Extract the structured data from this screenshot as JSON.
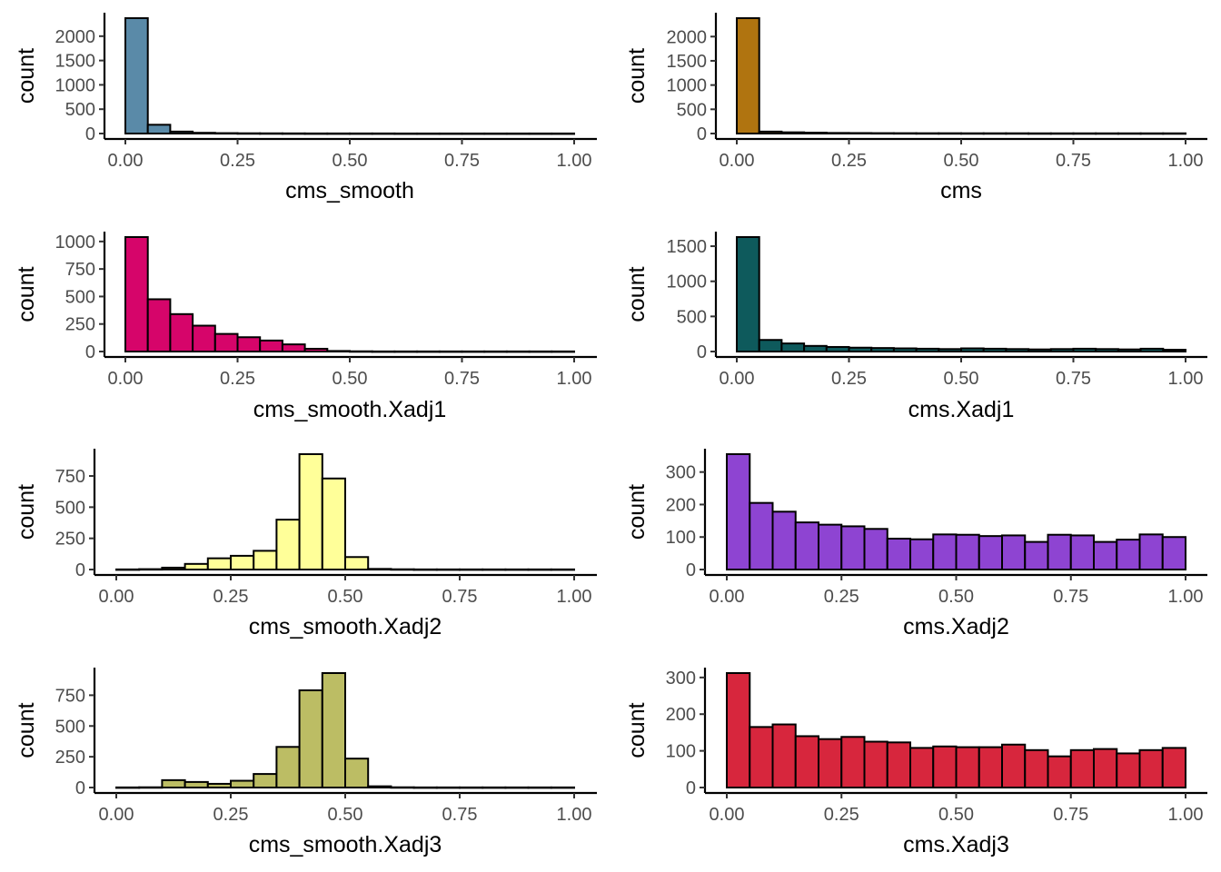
{
  "chart_data": [
    {
      "type": "bar",
      "xlabel": "cms_smooth",
      "ylabel": "count",
      "color": "#5a8aa8",
      "bin_width": 0.05,
      "bin_starts": [
        0.0,
        0.05,
        0.1,
        0.15,
        0.2,
        0.25,
        0.3,
        0.35,
        0.4,
        0.45,
        0.5,
        0.55,
        0.6,
        0.65,
        0.7,
        0.75,
        0.8,
        0.85,
        0.9,
        0.95
      ],
      "values": [
        2370,
        180,
        40,
        15,
        8,
        5,
        4,
        3,
        2,
        2,
        2,
        2,
        1,
        1,
        1,
        1,
        1,
        1,
        1,
        1
      ],
      "xlim": [
        0,
        1
      ],
      "ylim": [
        0,
        2370
      ],
      "x_ticks": [
        0,
        0.25,
        0.5,
        0.75,
        1
      ],
      "x_tick_labels": [
        "0.00",
        "0.25",
        "0.50",
        "0.75",
        "1.00"
      ],
      "y_ticks": [
        0,
        500,
        1000,
        1500,
        2000
      ],
      "y_tick_labels": [
        "0",
        "500",
        "1000",
        "1500",
        "2000"
      ]
    },
    {
      "type": "bar",
      "xlabel": "cms",
      "ylabel": "count",
      "color": "#b07410",
      "bin_width": 0.05,
      "bin_starts": [
        0.0,
        0.05,
        0.1,
        0.15,
        0.2,
        0.25,
        0.3,
        0.35,
        0.4,
        0.45,
        0.5,
        0.55,
        0.6,
        0.65,
        0.7,
        0.75,
        0.8,
        0.85,
        0.9,
        0.95
      ],
      "values": [
        2380,
        40,
        25,
        18,
        12,
        10,
        8,
        7,
        6,
        6,
        5,
        5,
        5,
        4,
        4,
        4,
        4,
        4,
        4,
        4
      ],
      "xlim": [
        0,
        1
      ],
      "ylim": [
        0,
        2380
      ],
      "x_ticks": [
        0,
        0.25,
        0.5,
        0.75,
        1
      ],
      "x_tick_labels": [
        "0.00",
        "0.25",
        "0.50",
        "0.75",
        "1.00"
      ],
      "y_ticks": [
        0,
        500,
        1000,
        1500,
        2000
      ],
      "y_tick_labels": [
        "0",
        "500",
        "1000",
        "1500",
        "2000"
      ]
    },
    {
      "type": "bar",
      "xlabel": "cms_smooth.Xadj1",
      "ylabel": "count",
      "color": "#d6056a",
      "bin_width": 0.05,
      "bin_starts": [
        0.0,
        0.05,
        0.1,
        0.15,
        0.2,
        0.25,
        0.3,
        0.35,
        0.4,
        0.45,
        0.5,
        0.55,
        0.6,
        0.65,
        0.7,
        0.75,
        0.8,
        0.85,
        0.9,
        0.95
      ],
      "values": [
        1040,
        475,
        340,
        235,
        160,
        130,
        100,
        65,
        25,
        5,
        2,
        1,
        1,
        1,
        1,
        1,
        1,
        1,
        1,
        1
      ],
      "xlim": [
        0,
        1
      ],
      "ylim": [
        0,
        1040
      ],
      "x_ticks": [
        0,
        0.25,
        0.5,
        0.75,
        1
      ],
      "x_tick_labels": [
        "0.00",
        "0.25",
        "0.50",
        "0.75",
        "1.00"
      ],
      "y_ticks": [
        0,
        250,
        500,
        750,
        1000
      ],
      "y_tick_labels": [
        "0",
        "250",
        "500",
        "750",
        "1000"
      ]
    },
    {
      "type": "bar",
      "xlabel": "cms.Xadj1",
      "ylabel": "count",
      "color": "#0e5a5c",
      "bin_width": 0.05,
      "bin_starts": [
        0.0,
        0.05,
        0.1,
        0.15,
        0.2,
        0.25,
        0.3,
        0.35,
        0.4,
        0.45,
        0.5,
        0.55,
        0.6,
        0.65,
        0.7,
        0.75,
        0.8,
        0.85,
        0.9,
        0.95
      ],
      "values": [
        1630,
        165,
        115,
        80,
        65,
        55,
        50,
        45,
        40,
        35,
        45,
        40,
        35,
        30,
        35,
        40,
        35,
        30,
        40,
        25
      ],
      "xlim": [
        0,
        1
      ],
      "ylim": [
        0,
        1630
      ],
      "x_ticks": [
        0,
        0.25,
        0.5,
        0.75,
        1
      ],
      "x_tick_labels": [
        "0.00",
        "0.25",
        "0.50",
        "0.75",
        "1.00"
      ],
      "y_ticks": [
        0,
        500,
        1000,
        1500
      ],
      "y_tick_labels": [
        "0",
        "500",
        "1000",
        "1500"
      ]
    },
    {
      "type": "bar",
      "xlabel": "cms_smooth.Xadj2",
      "ylabel": "count",
      "color": "#ffff99",
      "bin_width": 0.05,
      "bin_starts": [
        0.0,
        0.05,
        0.1,
        0.15,
        0.2,
        0.25,
        0.3,
        0.35,
        0.4,
        0.45,
        0.5,
        0.55,
        0.6,
        0.65,
        0.7,
        0.75,
        0.8,
        0.85,
        0.9,
        0.95
      ],
      "values": [
        1,
        3,
        15,
        45,
        90,
        110,
        150,
        400,
        925,
        730,
        100,
        5,
        2,
        1,
        1,
        1,
        1,
        1,
        1,
        1
      ],
      "xlim": [
        0,
        1
      ],
      "ylim": [
        0,
        925
      ],
      "x_ticks": [
        0,
        0.25,
        0.5,
        0.75,
        1
      ],
      "x_tick_labels": [
        "0.00",
        "0.25",
        "0.50",
        "0.75",
        "1.00"
      ],
      "y_ticks": [
        0,
        250,
        500,
        750
      ],
      "y_tick_labels": [
        "0",
        "250",
        "500",
        "750"
      ]
    },
    {
      "type": "bar",
      "xlabel": "cms.Xadj2",
      "ylabel": "count",
      "color": "#8e44d2",
      "bin_width": 0.05,
      "bin_starts": [
        0.0,
        0.05,
        0.1,
        0.15,
        0.2,
        0.25,
        0.3,
        0.35,
        0.4,
        0.45,
        0.5,
        0.55,
        0.6,
        0.65,
        0.7,
        0.75,
        0.8,
        0.85,
        0.9,
        0.95
      ],
      "values": [
        355,
        205,
        178,
        145,
        138,
        133,
        125,
        95,
        93,
        108,
        107,
        103,
        105,
        85,
        107,
        105,
        85,
        92,
        108,
        100
      ],
      "xlim": [
        0,
        1
      ],
      "ylim": [
        0,
        355
      ],
      "x_ticks": [
        0,
        0.25,
        0.5,
        0.75,
        1
      ],
      "x_tick_labels": [
        "0.00",
        "0.25",
        "0.50",
        "0.75",
        "1.00"
      ],
      "y_ticks": [
        0,
        100,
        200,
        300
      ],
      "y_tick_labels": [
        "0",
        "100",
        "200",
        "300"
      ]
    },
    {
      "type": "bar",
      "xlabel": "cms_smooth.Xadj3",
      "ylabel": "count",
      "color": "#bcbd64",
      "bin_width": 0.05,
      "bin_starts": [
        0.0,
        0.05,
        0.1,
        0.15,
        0.2,
        0.25,
        0.3,
        0.35,
        0.4,
        0.45,
        0.5,
        0.55,
        0.6,
        0.65,
        0.7,
        0.75,
        0.8,
        0.85,
        0.9,
        0.95
      ],
      "values": [
        1,
        2,
        60,
        45,
        30,
        55,
        110,
        330,
        790,
        930,
        235,
        10,
        2,
        1,
        1,
        1,
        1,
        1,
        1,
        1
      ],
      "xlim": [
        0,
        1
      ],
      "ylim": [
        0,
        930
      ],
      "x_ticks": [
        0,
        0.25,
        0.5,
        0.75,
        1
      ],
      "x_tick_labels": [
        "0.00",
        "0.25",
        "0.50",
        "0.75",
        "1.00"
      ],
      "y_ticks": [
        0,
        250,
        500,
        750
      ],
      "y_tick_labels": [
        "0",
        "250",
        "500",
        "750"
      ]
    },
    {
      "type": "bar",
      "xlabel": "cms.Xadj3",
      "ylabel": "count",
      "color": "#d7263d",
      "bin_width": 0.05,
      "bin_starts": [
        0.0,
        0.05,
        0.1,
        0.15,
        0.2,
        0.25,
        0.3,
        0.35,
        0.4,
        0.45,
        0.5,
        0.55,
        0.6,
        0.65,
        0.7,
        0.75,
        0.8,
        0.85,
        0.9,
        0.95
      ],
      "values": [
        312,
        165,
        172,
        140,
        132,
        138,
        125,
        123,
        108,
        112,
        110,
        110,
        117,
        102,
        85,
        102,
        105,
        93,
        102,
        108
      ],
      "xlim": [
        0,
        1
      ],
      "ylim": [
        0,
        312
      ],
      "x_ticks": [
        0,
        0.25,
        0.5,
        0.75,
        1
      ],
      "x_tick_labels": [
        "0.00",
        "0.25",
        "0.50",
        "0.75",
        "1.00"
      ],
      "y_ticks": [
        0,
        100,
        200,
        300
      ],
      "y_tick_labels": [
        "0",
        "100",
        "200",
        "300"
      ]
    }
  ]
}
